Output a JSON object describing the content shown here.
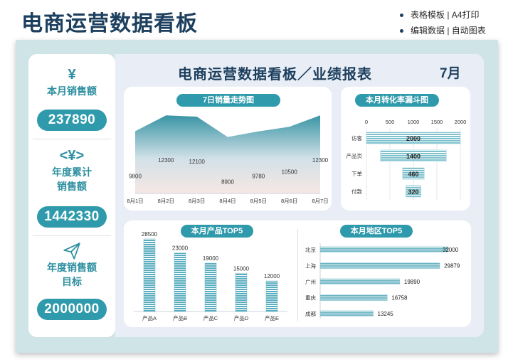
{
  "header": {
    "title": "电商运营数据看板",
    "features": [
      "表格模板 | A4打印",
      "编辑数据 | 自动图表"
    ]
  },
  "kpis": [
    {
      "symbol": "¥",
      "label_lines": [
        "本月销售额"
      ],
      "value": "237890"
    },
    {
      "symbol": "<¥>",
      "label_lines": [
        "年度累计",
        "销售额"
      ],
      "value": "1442330"
    },
    {
      "symbol": "paper-plane-icon",
      "label_lines": [
        "年度销售额",
        "目标"
      ],
      "value": "2000000"
    }
  ],
  "board": {
    "title": "电商运营数据看板／业绩报表",
    "month": "7月"
  },
  "colors": {
    "accent": "#2f9aab",
    "navy": "#1d3f5e",
    "frame": "#cfe4e6",
    "panel": "#e9eef6"
  },
  "chart_data": [
    {
      "type": "area",
      "title": "7日销量走势图",
      "categories": [
        "8月1日",
        "8月2日",
        "8月3日",
        "8月4日",
        "8月5日",
        "8月6日",
        "8月7日"
      ],
      "values": [
        9800,
        12300,
        12100,
        8900,
        9780,
        10500,
        12300
      ],
      "ylim": [
        0,
        13000
      ]
    },
    {
      "type": "bar",
      "orientation": "horizontal",
      "title": "本月转化率漏斗图",
      "categories": [
        "访客",
        "产品页",
        "下单",
        "付款"
      ],
      "values": [
        2000,
        1400,
        460,
        320
      ],
      "xticks": [
        0,
        500,
        1000,
        1500,
        2000
      ],
      "xlim": [
        0,
        2000
      ]
    },
    {
      "type": "bar",
      "title": "本月产品TOP5",
      "categories": [
        "产品A",
        "产品B",
        "产品C",
        "产品D",
        "产品E"
      ],
      "values": [
        28500,
        23000,
        19000,
        15000,
        12000
      ],
      "ylim": [
        0,
        28500
      ]
    },
    {
      "type": "bar",
      "orientation": "horizontal",
      "title": "本月地区TOP5",
      "categories": [
        "北京",
        "上海",
        "广州",
        "重庆",
        "成都"
      ],
      "values": [
        32000,
        29879,
        19890,
        16758,
        13245
      ],
      "xlim": [
        0,
        32000
      ]
    }
  ]
}
